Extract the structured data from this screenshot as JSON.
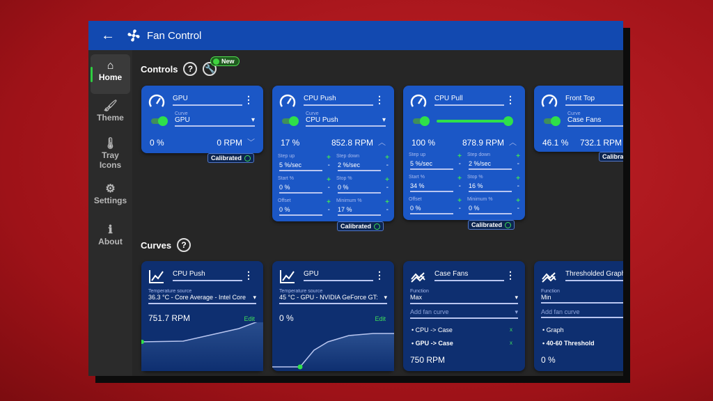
{
  "app": {
    "title": "Fan Control",
    "back": "←"
  },
  "sidebar": {
    "items": [
      {
        "label": "Home",
        "icon": "⌂"
      },
      {
        "label": "Theme",
        "icon": "🖌"
      },
      {
        "label": "Tray Icons",
        "icon": "🌡"
      },
      {
        "label": "Settings",
        "icon": "⚙"
      },
      {
        "label": "About",
        "icon": "ℹ"
      }
    ]
  },
  "controls": {
    "heading": "Controls",
    "help": "?",
    "new_badge": "New",
    "calibrated": "Calibrated",
    "labels": {
      "curve": "Curve",
      "step_up": "Step up",
      "step_down": "Step down",
      "start": "Start %",
      "stop": "Stop %",
      "offset": "Offset",
      "minimum": "Minimum %",
      "plus": "+",
      "minus": "-"
    },
    "cards": [
      {
        "name": "GPU",
        "curve": "GPU",
        "percent": "0 %",
        "rpm": "0 RPM"
      },
      {
        "name": "CPU Push",
        "curve": "CPU Push",
        "percent": "17 %",
        "rpm": "852.8 RPM",
        "step_up": "5 %/sec",
        "step_down": "2 %/sec",
        "start": "0 %",
        "stop": "0 %",
        "offset": "0 %",
        "minimum": "17 %"
      },
      {
        "name": "CPU Pull",
        "manual_percent": 100,
        "percent": "100 %",
        "rpm": "878.9 RPM",
        "step_up": "5 %/sec",
        "step_down": "2 %/sec",
        "start": "34 %",
        "stop": "16 %",
        "offset": "0 %",
        "minimum": "0 %"
      },
      {
        "name": "Front Top",
        "curve": "Case Fans",
        "percent": "46.1 %",
        "rpm": "732.1 RPM"
      }
    ]
  },
  "curves": {
    "heading": "Curves",
    "help": "?",
    "labels": {
      "temp_source": "Temperature source",
      "function": "Function",
      "add_fan_curve": "Add fan curve",
      "edit": "Edit",
      "remove": "x"
    },
    "cards": [
      {
        "name": "CPU Push",
        "source": "36.3 °C - Core Average - Intel Core",
        "value": "751.7 RPM"
      },
      {
        "name": "GPU",
        "source": "45 °C - GPU - NVIDIA GeForce GT:",
        "value": "0 %"
      },
      {
        "name": "Case Fans",
        "function": "Max",
        "items": [
          "CPU -> Case",
          "GPU -> Case"
        ],
        "value": "750 RPM"
      },
      {
        "name": "Thresholded Graph",
        "function": "Min",
        "items": [
          "Graph",
          "40-60 Threshold"
        ],
        "value": "0 %"
      }
    ]
  },
  "colors": {
    "accent": "#2ee04a",
    "titlebar": "#1249b0",
    "control_card": "#1b57c6",
    "curve_card": "#0e2f70"
  }
}
